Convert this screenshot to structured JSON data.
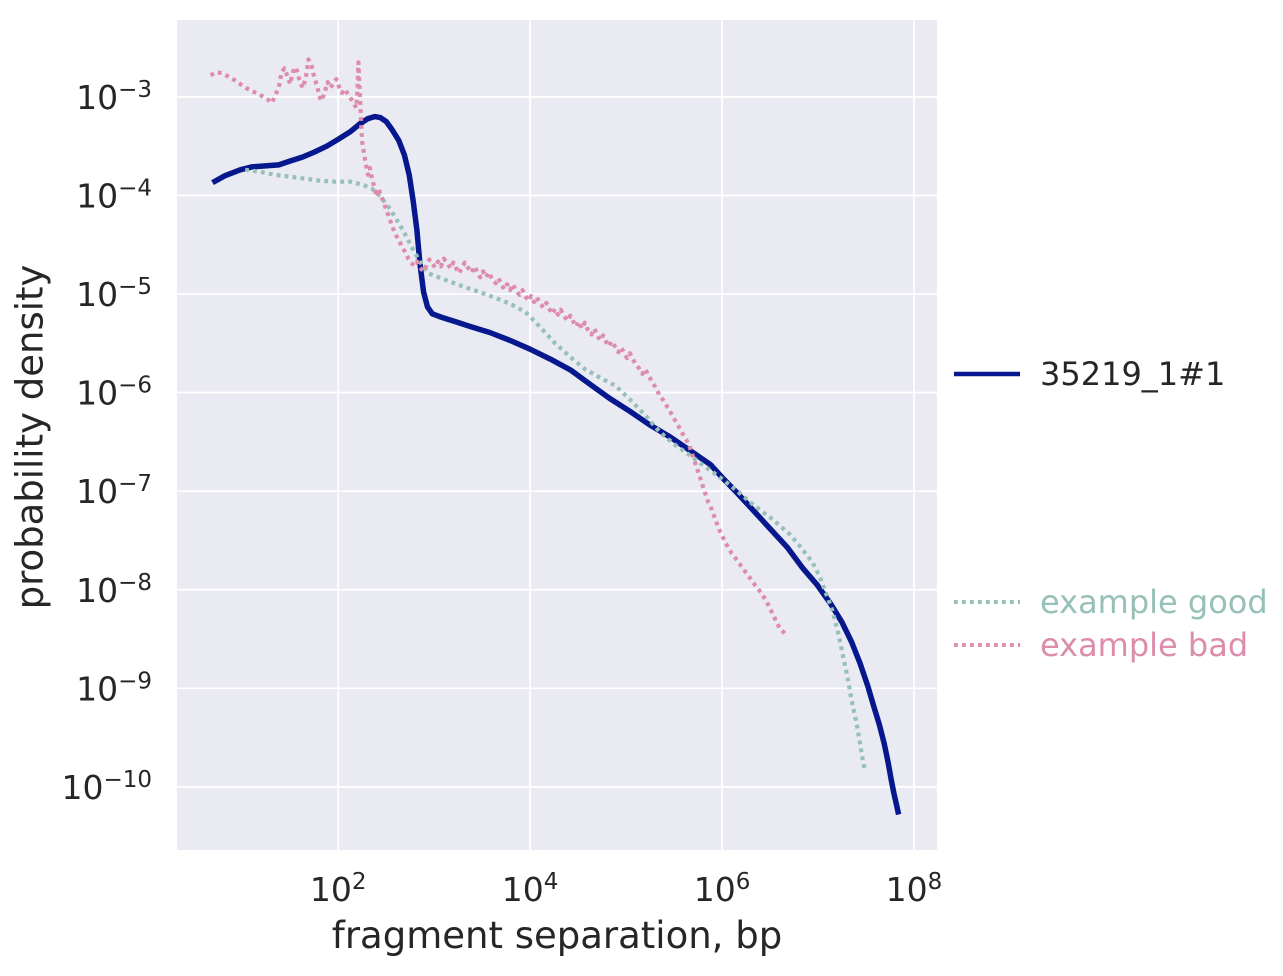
{
  "figure": {
    "background": "#ffffff",
    "panel_background": "#eaeaf2",
    "grid_color": "#ffffff",
    "text_color": "#262626"
  },
  "chart_data": {
    "type": "line",
    "title": "",
    "xlabel": "fragment separation, bp",
    "ylabel": "probability density",
    "x_scale": "log",
    "y_scale": "log",
    "grid": true,
    "legend_position": "right",
    "tick_base": "10",
    "x_tick_exponents": [
      2,
      4,
      6,
      8
    ],
    "y_tick_exponents": [
      -3,
      -4,
      -5,
      -6,
      -7,
      -8,
      -9,
      -10
    ],
    "xlim_log10": [
      0.32,
      8.24
    ],
    "ylim_log10": [
      -10.64,
      -2.22
    ],
    "series": [
      {
        "name": "35219_1#1",
        "color": "#07188e",
        "line_style": "solid",
        "line_width": 5.5,
        "legend_text_color": "#262626",
        "points_log10": [
          [
            0.69,
            -3.87
          ],
          [
            0.82,
            -3.8
          ],
          [
            0.98,
            -3.74
          ],
          [
            1.1,
            -3.71
          ],
          [
            1.24,
            -3.7
          ],
          [
            1.38,
            -3.69
          ],
          [
            1.5,
            -3.65
          ],
          [
            1.63,
            -3.61
          ],
          [
            1.75,
            -3.56
          ],
          [
            1.88,
            -3.5
          ],
          [
            2.0,
            -3.43
          ],
          [
            2.13,
            -3.35
          ],
          [
            2.23,
            -3.27
          ],
          [
            2.31,
            -3.22
          ],
          [
            2.38,
            -3.2
          ],
          [
            2.44,
            -3.21
          ],
          [
            2.5,
            -3.25
          ],
          [
            2.56,
            -3.33
          ],
          [
            2.63,
            -3.44
          ],
          [
            2.69,
            -3.59
          ],
          [
            2.74,
            -3.79
          ],
          [
            2.78,
            -4.05
          ],
          [
            2.82,
            -4.35
          ],
          [
            2.85,
            -4.68
          ],
          [
            2.89,
            -4.98
          ],
          [
            2.93,
            -5.13
          ],
          [
            2.98,
            -5.2
          ],
          [
            3.06,
            -5.23
          ],
          [
            3.22,
            -5.28
          ],
          [
            3.38,
            -5.33
          ],
          [
            3.58,
            -5.39
          ],
          [
            3.79,
            -5.47
          ],
          [
            4.0,
            -5.56
          ],
          [
            4.21,
            -5.66
          ],
          [
            4.42,
            -5.77
          ],
          [
            4.63,
            -5.92
          ],
          [
            4.83,
            -6.06
          ],
          [
            5.04,
            -6.19
          ],
          [
            5.25,
            -6.33
          ],
          [
            5.46,
            -6.45
          ],
          [
            5.67,
            -6.59
          ],
          [
            5.88,
            -6.73
          ],
          [
            6.0,
            -6.86
          ],
          [
            6.16,
            -7.02
          ],
          [
            6.32,
            -7.19
          ],
          [
            6.5,
            -7.38
          ],
          [
            6.68,
            -7.57
          ],
          [
            6.84,
            -7.78
          ],
          [
            6.99,
            -7.95
          ],
          [
            7.13,
            -8.14
          ],
          [
            7.25,
            -8.33
          ],
          [
            7.35,
            -8.53
          ],
          [
            7.44,
            -8.75
          ],
          [
            7.52,
            -8.98
          ],
          [
            7.58,
            -9.18
          ],
          [
            7.64,
            -9.37
          ],
          [
            7.69,
            -9.56
          ],
          [
            7.73,
            -9.75
          ],
          [
            7.76,
            -9.91
          ],
          [
            7.79,
            -10.06
          ],
          [
            7.82,
            -10.19
          ],
          [
            7.84,
            -10.28
          ]
        ]
      },
      {
        "name": "example good",
        "color": "#96c0b8",
        "line_style": "dotted",
        "line_width": 4.2,
        "legend_text_color": "#96c0b8",
        "points_log10": [
          [
            1.03,
            -3.74
          ],
          [
            1.19,
            -3.76
          ],
          [
            1.34,
            -3.79
          ],
          [
            1.5,
            -3.81
          ],
          [
            1.66,
            -3.83
          ],
          [
            1.81,
            -3.85
          ],
          [
            1.97,
            -3.86
          ],
          [
            2.13,
            -3.86
          ],
          [
            2.25,
            -3.89
          ],
          [
            2.35,
            -3.93
          ],
          [
            2.44,
            -4.01
          ],
          [
            2.52,
            -4.11
          ],
          [
            2.6,
            -4.23
          ],
          [
            2.69,
            -4.38
          ],
          [
            2.77,
            -4.53
          ],
          [
            2.85,
            -4.67
          ],
          [
            2.94,
            -4.79
          ],
          [
            3.15,
            -4.87
          ],
          [
            3.35,
            -4.94
          ],
          [
            3.56,
            -5.01
          ],
          [
            3.77,
            -5.09
          ],
          [
            3.95,
            -5.18
          ],
          [
            4.1,
            -5.33
          ],
          [
            4.26,
            -5.5
          ],
          [
            4.42,
            -5.64
          ],
          [
            4.57,
            -5.76
          ],
          [
            4.73,
            -5.85
          ],
          [
            4.89,
            -5.93
          ],
          [
            5.04,
            -6.07
          ],
          [
            5.2,
            -6.23
          ],
          [
            5.35,
            -6.4
          ],
          [
            5.51,
            -6.53
          ],
          [
            5.67,
            -6.64
          ],
          [
            5.82,
            -6.75
          ],
          [
            5.98,
            -6.86
          ],
          [
            6.16,
            -7.0
          ],
          [
            6.34,
            -7.15
          ],
          [
            6.52,
            -7.28
          ],
          [
            6.71,
            -7.44
          ],
          [
            6.83,
            -7.58
          ],
          [
            6.94,
            -7.72
          ],
          [
            7.02,
            -7.87
          ],
          [
            7.08,
            -8.03
          ],
          [
            7.15,
            -8.21
          ],
          [
            7.21,
            -8.44
          ],
          [
            7.26,
            -8.67
          ],
          [
            7.31,
            -8.9
          ],
          [
            7.35,
            -9.12
          ],
          [
            7.4,
            -9.35
          ],
          [
            7.44,
            -9.57
          ],
          [
            7.47,
            -9.75
          ],
          [
            7.49,
            -9.83
          ]
        ]
      },
      {
        "name": "example bad",
        "color": "#de8cab",
        "line_style": "dotted",
        "line_width": 4.2,
        "legend_text_color": "#de8cab",
        "points_log10": [
          [
            0.67,
            -2.78
          ],
          [
            0.73,
            -2.75
          ],
          [
            0.79,
            -2.76
          ],
          [
            0.85,
            -2.79
          ],
          [
            0.92,
            -2.83
          ],
          [
            0.98,
            -2.87
          ],
          [
            1.04,
            -2.91
          ],
          [
            1.1,
            -2.94
          ],
          [
            1.17,
            -2.97
          ],
          [
            1.22,
            -3.0
          ],
          [
            1.27,
            -3.03
          ],
          [
            1.31,
            -3.06
          ],
          [
            1.34,
            -2.99
          ],
          [
            1.38,
            -2.91
          ],
          [
            1.41,
            -2.75
          ],
          [
            1.44,
            -2.71
          ],
          [
            1.47,
            -2.79
          ],
          [
            1.5,
            -2.87
          ],
          [
            1.53,
            -2.74
          ],
          [
            1.56,
            -2.7
          ],
          [
            1.59,
            -2.81
          ],
          [
            1.63,
            -2.91
          ],
          [
            1.66,
            -2.82
          ],
          [
            1.69,
            -2.62
          ],
          [
            1.72,
            -2.67
          ],
          [
            1.75,
            -2.8
          ],
          [
            1.78,
            -2.89
          ],
          [
            1.8,
            -2.97
          ],
          [
            1.82,
            -3.04
          ],
          [
            1.85,
            -2.98
          ],
          [
            1.89,
            -2.85
          ],
          [
            1.92,
            -2.91
          ],
          [
            1.95,
            -2.86
          ],
          [
            1.98,
            -2.82
          ],
          [
            2.01,
            -2.9
          ],
          [
            2.04,
            -2.96
          ],
          [
            2.07,
            -2.92
          ],
          [
            2.1,
            -2.97
          ],
          [
            2.14,
            -3.03
          ],
          [
            2.17,
            -3.08
          ],
          [
            2.19,
            -3.11
          ],
          [
            2.2,
            -2.93
          ],
          [
            2.21,
            -2.65
          ],
          [
            2.22,
            -2.85
          ],
          [
            2.23,
            -3.07
          ],
          [
            2.24,
            -3.29
          ],
          [
            2.25,
            -3.46
          ],
          [
            2.27,
            -3.58
          ],
          [
            2.29,
            -3.69
          ],
          [
            2.31,
            -3.79
          ],
          [
            2.33,
            -3.72
          ],
          [
            2.35,
            -3.82
          ],
          [
            2.38,
            -3.93
          ],
          [
            2.4,
            -4.01
          ],
          [
            2.42,
            -3.93
          ],
          [
            2.45,
            -4.01
          ],
          [
            2.48,
            -4.09
          ],
          [
            2.51,
            -4.17
          ],
          [
            2.54,
            -4.25
          ],
          [
            2.57,
            -4.33
          ],
          [
            2.6,
            -4.4
          ],
          [
            2.64,
            -4.47
          ],
          [
            2.67,
            -4.53
          ],
          [
            2.7,
            -4.58
          ],
          [
            2.73,
            -4.64
          ],
          [
            2.76,
            -4.68
          ],
          [
            2.79,
            -4.71
          ],
          [
            2.82,
            -4.67
          ],
          [
            2.85,
            -4.73
          ],
          [
            2.89,
            -4.77
          ],
          [
            2.92,
            -4.71
          ],
          [
            2.95,
            -4.65
          ],
          [
            2.98,
            -4.69
          ],
          [
            3.01,
            -4.73
          ],
          [
            3.04,
            -4.67
          ],
          [
            3.07,
            -4.72
          ],
          [
            3.1,
            -4.64
          ],
          [
            3.14,
            -4.69
          ],
          [
            3.17,
            -4.74
          ],
          [
            3.2,
            -4.68
          ],
          [
            3.23,
            -4.74
          ],
          [
            3.26,
            -4.79
          ],
          [
            3.29,
            -4.73
          ],
          [
            3.32,
            -4.68
          ],
          [
            3.35,
            -4.73
          ],
          [
            3.39,
            -4.78
          ],
          [
            3.42,
            -4.72
          ],
          [
            3.45,
            -4.78
          ],
          [
            3.48,
            -4.83
          ],
          [
            3.51,
            -4.77
          ],
          [
            3.54,
            -4.83
          ],
          [
            3.57,
            -4.78
          ],
          [
            3.6,
            -4.84
          ],
          [
            3.64,
            -4.89
          ],
          [
            3.67,
            -4.84
          ],
          [
            3.7,
            -4.9
          ],
          [
            3.73,
            -4.95
          ],
          [
            3.76,
            -4.9
          ],
          [
            3.79,
            -4.96
          ],
          [
            3.82,
            -4.9
          ],
          [
            3.85,
            -4.96
          ],
          [
            3.89,
            -5.01
          ],
          [
            3.92,
            -4.96
          ],
          [
            3.95,
            -5.02
          ],
          [
            3.98,
            -5.07
          ],
          [
            4.01,
            -5.02
          ],
          [
            4.04,
            -5.08
          ],
          [
            4.07,
            -5.03
          ],
          [
            4.1,
            -5.09
          ],
          [
            4.14,
            -5.14
          ],
          [
            4.17,
            -5.09
          ],
          [
            4.2,
            -5.15
          ],
          [
            4.23,
            -5.2
          ],
          [
            4.26,
            -5.15
          ],
          [
            4.29,
            -5.21
          ],
          [
            4.32,
            -5.16
          ],
          [
            4.35,
            -5.22
          ],
          [
            4.39,
            -5.27
          ],
          [
            4.42,
            -5.22
          ],
          [
            4.45,
            -5.28
          ],
          [
            4.48,
            -5.33
          ],
          [
            4.51,
            -5.28
          ],
          [
            4.54,
            -5.35
          ],
          [
            4.57,
            -5.29
          ],
          [
            4.6,
            -5.36
          ],
          [
            4.64,
            -5.41
          ],
          [
            4.67,
            -5.35
          ],
          [
            4.7,
            -5.42
          ],
          [
            4.73,
            -5.47
          ],
          [
            4.76,
            -5.42
          ],
          [
            4.79,
            -5.48
          ],
          [
            4.82,
            -5.53
          ],
          [
            4.85,
            -5.48
          ],
          [
            4.89,
            -5.54
          ],
          [
            4.92,
            -5.59
          ],
          [
            4.95,
            -5.54
          ],
          [
            4.98,
            -5.6
          ],
          [
            5.01,
            -5.65
          ],
          [
            5.04,
            -5.6
          ],
          [
            5.07,
            -5.66
          ],
          [
            5.1,
            -5.71
          ],
          [
            5.14,
            -5.76
          ],
          [
            5.17,
            -5.81
          ],
          [
            5.2,
            -5.76
          ],
          [
            5.23,
            -5.82
          ],
          [
            5.26,
            -5.87
          ],
          [
            5.29,
            -5.92
          ],
          [
            5.32,
            -5.97
          ],
          [
            5.35,
            -6.03
          ],
          [
            5.39,
            -6.08
          ],
          [
            5.42,
            -6.13
          ],
          [
            5.45,
            -6.18
          ],
          [
            5.48,
            -6.23
          ],
          [
            5.51,
            -6.28
          ],
          [
            5.54,
            -6.33
          ],
          [
            5.57,
            -6.38
          ],
          [
            5.6,
            -6.44
          ],
          [
            5.64,
            -6.5
          ],
          [
            5.67,
            -6.57
          ],
          [
            5.7,
            -6.66
          ],
          [
            5.73,
            -6.74
          ],
          [
            5.76,
            -6.83
          ],
          [
            5.79,
            -6.92
          ],
          [
            5.82,
            -7.01
          ],
          [
            5.85,
            -7.1
          ],
          [
            5.89,
            -7.18
          ],
          [
            5.92,
            -7.26
          ],
          [
            5.95,
            -7.34
          ],
          [
            5.98,
            -7.41
          ],
          [
            6.01,
            -7.47
          ],
          [
            6.04,
            -7.53
          ],
          [
            6.07,
            -7.58
          ],
          [
            6.1,
            -7.63
          ],
          [
            6.14,
            -7.68
          ],
          [
            6.17,
            -7.72
          ],
          [
            6.2,
            -7.76
          ],
          [
            6.23,
            -7.8
          ],
          [
            6.26,
            -7.84
          ],
          [
            6.29,
            -7.88
          ],
          [
            6.32,
            -7.92
          ],
          [
            6.35,
            -7.96
          ],
          [
            6.39,
            -8.01
          ],
          [
            6.42,
            -8.05
          ],
          [
            6.45,
            -8.1
          ],
          [
            6.48,
            -8.15
          ],
          [
            6.51,
            -8.21
          ],
          [
            6.54,
            -8.27
          ],
          [
            6.57,
            -8.33
          ],
          [
            6.6,
            -8.39
          ],
          [
            6.64,
            -8.43
          ],
          [
            6.67,
            -8.46
          ]
        ]
      }
    ]
  }
}
